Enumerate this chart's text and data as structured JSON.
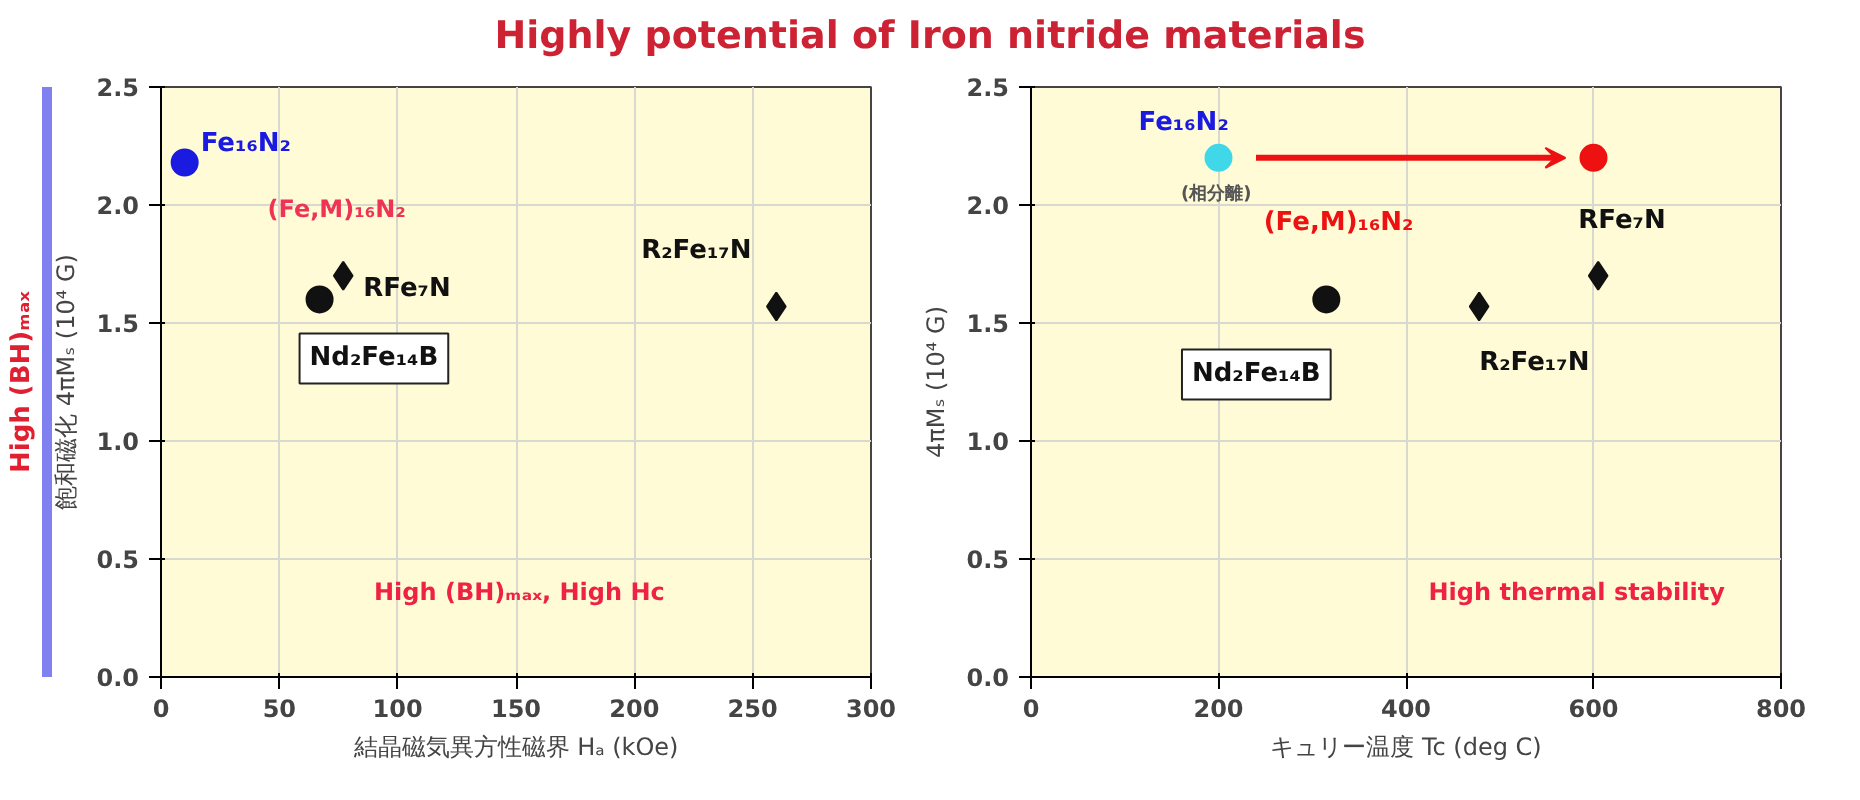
{
  "chart_data": [
    {
      "type": "scatter",
      "title": "Highly potential of Iron nitride materials",
      "xlabel": "結晶磁気異方性磁界 Hₐ (kOe)",
      "ylabel": "飽和磁化 4πMₛ (10⁴ G)",
      "y2label": "High (BH)ₘₐₓ",
      "xlim": [
        0,
        300
      ],
      "xticks": [
        0,
        50,
        100,
        150,
        200,
        250,
        300
      ],
      "ylim": [
        0,
        2.5
      ],
      "yticks": [
        {
          "value": 0,
          "label": "0.0"
        },
        0.5,
        {
          "value": 1,
          "label": "1.0"
        },
        1.5,
        {
          "value": 2,
          "label": "2.0"
        },
        2.5
      ],
      "grid": true,
      "series": [
        {
          "name": "Fe₁₆N₂",
          "color": "#1a1ae0",
          "marker": "circle",
          "x": [
            10
          ],
          "values": [
            2.18
          ]
        },
        {
          "name": "Nd₂Fe₁₄B",
          "color": "#111111",
          "marker": "circle",
          "x": [
            67
          ],
          "values": [
            1.6
          ]
        },
        {
          "name": "RFe₇N",
          "color": "#111111",
          "marker": "diamond",
          "x": [
            77
          ],
          "values": [
            1.7
          ]
        },
        {
          "name": "R₂Fe₁₇N",
          "color": "#111111",
          "marker": "diamond",
          "x": [
            260
          ],
          "values": [
            1.57
          ]
        }
      ],
      "annotations": [
        "(Fe,M)₁₆N₂",
        "High (BH)ₘₐₓ, High Hc"
      ]
    },
    {
      "type": "scatter",
      "xlabel": "キュリー温度 Tc (deg C)",
      "ylabel": "4πMₛ (10⁴ G)",
      "xlim": [
        0,
        800
      ],
      "xticks": [
        0,
        200,
        400,
        600,
        800
      ],
      "ylim": [
        0,
        2.5
      ],
      "yticks": [
        {
          "value": 0,
          "label": "0.0"
        },
        0.5,
        {
          "value": 1,
          "label": "1.0"
        },
        1.5,
        {
          "value": 2,
          "label": "2.0"
        },
        2.5
      ],
      "grid": true,
      "series": [
        {
          "name": "Fe₁₆N₂",
          "color": "#40d8e8",
          "marker": "circle",
          "x": [
            200
          ],
          "values": [
            2.2
          ]
        },
        {
          "name": "(Fe,M)₁₆N₂",
          "color": "#ee1111",
          "marker": "circle",
          "x": [
            600
          ],
          "values": [
            2.2
          ]
        },
        {
          "name": "Nd₂Fe₁₄B",
          "color": "#111111",
          "marker": "circle",
          "x": [
            315
          ],
          "values": [
            1.6
          ]
        },
        {
          "name": "R₂Fe₁₇N",
          "color": "#111111",
          "marker": "diamond",
          "x": [
            478
          ],
          "values": [
            1.57
          ]
        },
        {
          "name": "RFe₇N",
          "color": "#111111",
          "marker": "diamond",
          "x": [
            605
          ],
          "values": [
            1.7
          ]
        }
      ],
      "annotations": [
        "(相分離)",
        "High thermal stability"
      ]
    }
  ]
}
